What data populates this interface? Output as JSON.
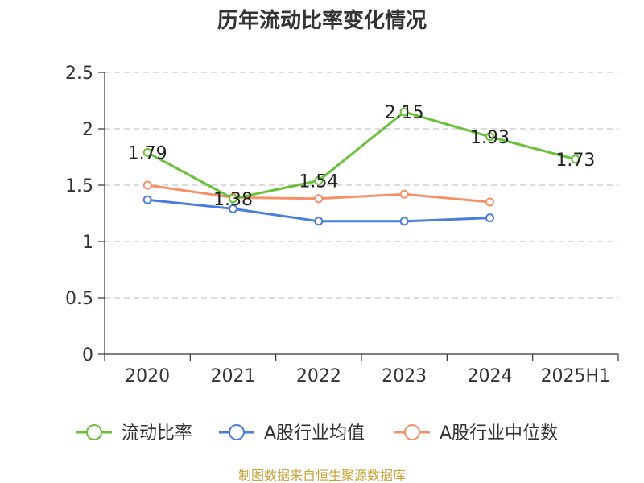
{
  "chart_data": {
    "type": "line",
    "title": "历年流动比率变化情况",
    "categories": [
      "2020",
      "2021",
      "2022",
      "2023",
      "2024",
      "2025H1"
    ],
    "ylim": [
      0,
      2.5
    ],
    "yticks": [
      "0",
      "0.5",
      "1",
      "1.5",
      "2",
      "2.5"
    ],
    "grid": true,
    "legend_position": "bottom",
    "series": [
      {
        "name": "流动比率",
        "color": "#67c23a",
        "values": [
          1.79,
          1.38,
          1.54,
          2.15,
          1.93,
          1.73
        ],
        "labels": [
          "1.79",
          "1.38",
          "1.54",
          "2.15",
          "1.93",
          "1.73"
        ],
        "show_labels": true
      },
      {
        "name": "A股行业均值",
        "color": "#4a7fd9",
        "values": [
          1.37,
          1.29,
          1.18,
          1.18,
          1.21,
          null
        ],
        "show_labels": false
      },
      {
        "name": "A股行业中位数",
        "color": "#f59067",
        "values": [
          1.5,
          1.39,
          1.38,
          1.42,
          1.35,
          null
        ],
        "show_labels": false
      }
    ],
    "source": "制图数据来自恒生聚源数据库"
  }
}
